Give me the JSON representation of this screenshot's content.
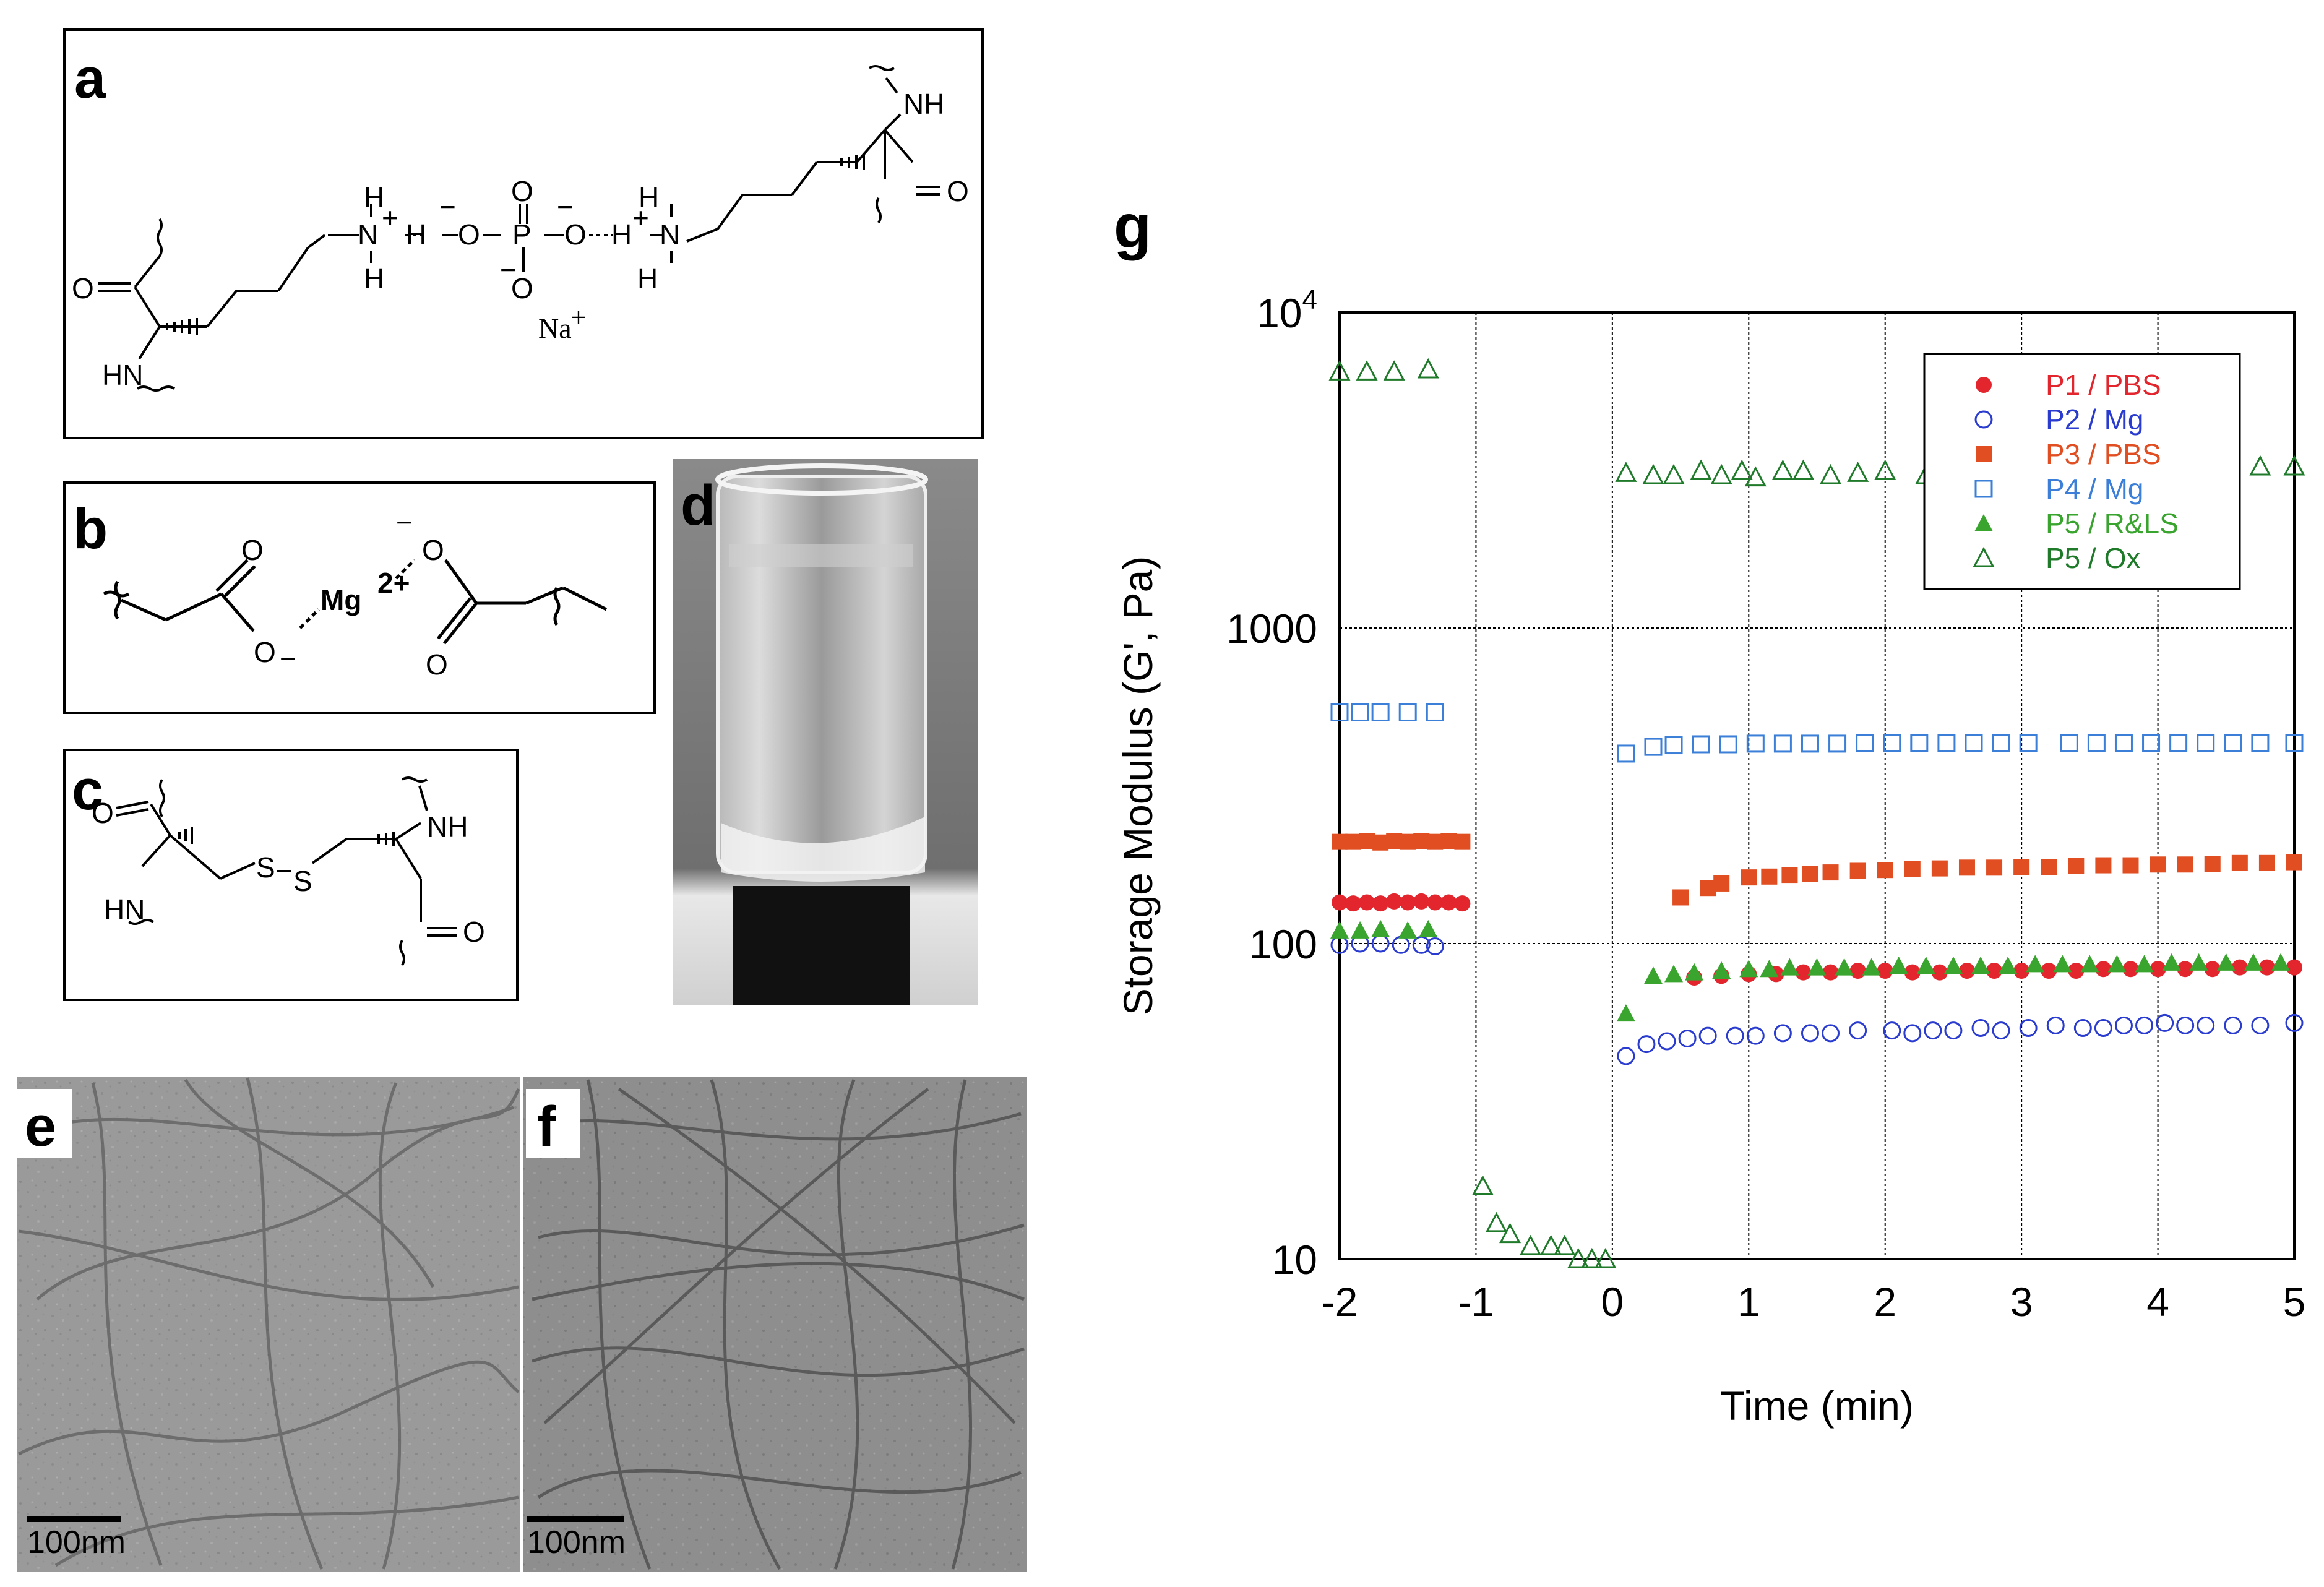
{
  "panel_a": {
    "label": "a",
    "nh_top": "NH",
    "o_right": "O",
    "h_left_top": "H",
    "n_left": "N",
    "plus_left": "+",
    "h_left_mid": "H",
    "h_left_bottom": "H",
    "minus_o1": "−",
    "o1": "O",
    "p": "P",
    "o_top": "O",
    "o2": "O",
    "minus_o2": "−",
    "h_right_top": "H",
    "h_right_mid": "H",
    "plus_right": "+",
    "n_right": "N",
    "h_right_bottom": "H",
    "o_bottom": "O",
    "minus_bottom": "−",
    "na": "Na",
    "na_plus": "+",
    "o_left": "O",
    "hn_bottom": "HN"
  },
  "panel_b": {
    "label": "b",
    "o_top_left": "O",
    "o_bottom_left": "O",
    "minus_left": "−",
    "mg": "Mg",
    "mg_charge": "2+",
    "minus_right": "−",
    "o_top_right": "O",
    "o_bottom_right": "O"
  },
  "panel_c": {
    "label": "c",
    "o_left": "O",
    "hn_left": "HN",
    "s1": "S",
    "s2": "S",
    "nh_right": "NH",
    "o_right": "O"
  },
  "panel_d": {
    "label": "d"
  },
  "panel_e": {
    "label": "e",
    "scale_label": "100nm"
  },
  "panel_f": {
    "label": "f",
    "scale_label": "100nm"
  },
  "panel_g": {
    "label": "g"
  },
  "chart_data": {
    "type": "scatter",
    "title": "",
    "xlabel": "Time (min)",
    "ylabel": "Storage Modulus (G', Pa)",
    "xlim": [
      -2,
      5
    ],
    "ylim": [
      10,
      10000
    ],
    "yscale": "log",
    "grid": true,
    "legend_position": "top-right",
    "x_ticks": [
      "-2",
      "-1",
      "0",
      "1",
      "2",
      "3",
      "4",
      "5"
    ],
    "y_ticks": [
      {
        "value": 10,
        "label": "10"
      },
      {
        "value": 100,
        "label": "100"
      },
      {
        "value": 1000,
        "label": "1000"
      },
      {
        "value": 10000,
        "label": "10",
        "sup": "4"
      }
    ],
    "series": [
      {
        "name": "P1 / PBS",
        "color": "#e3262e",
        "marker": "filled-circle",
        "points": [
          [
            -2,
            135
          ],
          [
            -1.9,
            134
          ],
          [
            -1.8,
            135
          ],
          [
            -1.7,
            134
          ],
          [
            -1.6,
            136
          ],
          [
            -1.5,
            135
          ],
          [
            -1.4,
            136
          ],
          [
            -1.3,
            135
          ],
          [
            -1.2,
            135
          ],
          [
            -1.1,
            134
          ],
          [
            0.6,
            78
          ],
          [
            0.8,
            79
          ],
          [
            1,
            80
          ],
          [
            1.2,
            80
          ],
          [
            1.4,
            81
          ],
          [
            1.6,
            81
          ],
          [
            1.8,
            82
          ],
          [
            2,
            82
          ],
          [
            2.2,
            81
          ],
          [
            2.4,
            81
          ],
          [
            2.6,
            82
          ],
          [
            2.8,
            82
          ],
          [
            3,
            82
          ],
          [
            3.2,
            82
          ],
          [
            3.4,
            82
          ],
          [
            3.6,
            83
          ],
          [
            3.8,
            83
          ],
          [
            4,
            83
          ],
          [
            4.2,
            83
          ],
          [
            4.4,
            83
          ],
          [
            4.6,
            84
          ],
          [
            4.8,
            84
          ],
          [
            5,
            84
          ]
        ]
      },
      {
        "name": "P2 / Mg",
        "color": "#2a3ccf",
        "marker": "open-circle",
        "points": [
          [
            -2,
            99
          ],
          [
            -1.85,
            100
          ],
          [
            -1.7,
            100
          ],
          [
            -1.55,
            99
          ],
          [
            -1.4,
            99
          ],
          [
            -1.3,
            98
          ],
          [
            0.1,
            44
          ],
          [
            0.25,
            48
          ],
          [
            0.4,
            49
          ],
          [
            0.55,
            50
          ],
          [
            0.7,
            51
          ],
          [
            0.9,
            51
          ],
          [
            1.05,
            51
          ],
          [
            1.25,
            52
          ],
          [
            1.45,
            52
          ],
          [
            1.6,
            52
          ],
          [
            1.8,
            53
          ],
          [
            2.05,
            53
          ],
          [
            2.2,
            52
          ],
          [
            2.35,
            53
          ],
          [
            2.5,
            53
          ],
          [
            2.7,
            54
          ],
          [
            2.85,
            53
          ],
          [
            3.05,
            54
          ],
          [
            3.25,
            55
          ],
          [
            3.45,
            54
          ],
          [
            3.6,
            54
          ],
          [
            3.75,
            55
          ],
          [
            3.9,
            55
          ],
          [
            4.05,
            56
          ],
          [
            4.2,
            55
          ],
          [
            4.35,
            55
          ],
          [
            4.55,
            55
          ],
          [
            4.75,
            55
          ],
          [
            5,
            56
          ]
        ]
      },
      {
        "name": "P3 / PBS",
        "color": "#e04e22",
        "marker": "filled-square",
        "points": [
          [
            -2,
            210
          ],
          [
            -1.9,
            210
          ],
          [
            -1.8,
            211
          ],
          [
            -1.7,
            209
          ],
          [
            -1.6,
            211
          ],
          [
            -1.5,
            210
          ],
          [
            -1.4,
            211
          ],
          [
            -1.3,
            210
          ],
          [
            -1.2,
            211
          ],
          [
            -1.1,
            210
          ],
          [
            0.5,
            140
          ],
          [
            0.7,
            150
          ],
          [
            0.8,
            155
          ],
          [
            1,
            162
          ],
          [
            1.15,
            163
          ],
          [
            1.3,
            165
          ],
          [
            1.45,
            166
          ],
          [
            1.6,
            168
          ],
          [
            1.8,
            170
          ],
          [
            2,
            171
          ],
          [
            2.2,
            172
          ],
          [
            2.4,
            173
          ],
          [
            2.6,
            174
          ],
          [
            2.8,
            174
          ],
          [
            3,
            175
          ],
          [
            3.2,
            175
          ],
          [
            3.4,
            176
          ],
          [
            3.6,
            177
          ],
          [
            3.8,
            177
          ],
          [
            4,
            178
          ],
          [
            4.2,
            178
          ],
          [
            4.4,
            179
          ],
          [
            4.6,
            180
          ],
          [
            4.8,
            180
          ],
          [
            5,
            181
          ]
        ]
      },
      {
        "name": "P4 / Mg",
        "color": "#3b7fd8",
        "marker": "open-square",
        "points": [
          [
            -2,
            540
          ],
          [
            -1.85,
            540
          ],
          [
            -1.7,
            540
          ],
          [
            -1.5,
            540
          ],
          [
            -1.3,
            540
          ],
          [
            0.1,
            400
          ],
          [
            0.3,
            420
          ],
          [
            0.45,
            425
          ],
          [
            0.65,
            428
          ],
          [
            0.85,
            428
          ],
          [
            1.05,
            430
          ],
          [
            1.25,
            430
          ],
          [
            1.45,
            430
          ],
          [
            1.65,
            430
          ],
          [
            1.85,
            432
          ],
          [
            2.05,
            432
          ],
          [
            2.25,
            432
          ],
          [
            2.45,
            432
          ],
          [
            2.65,
            432
          ],
          [
            2.85,
            432
          ],
          [
            3.05,
            432
          ],
          [
            3.35,
            432
          ],
          [
            3.55,
            432
          ],
          [
            3.75,
            432
          ],
          [
            3.95,
            432
          ],
          [
            4.15,
            432
          ],
          [
            4.35,
            432
          ],
          [
            4.55,
            432
          ],
          [
            4.75,
            432
          ],
          [
            5,
            432
          ]
        ]
      },
      {
        "name": "P5 / R&LS",
        "color": "#3aa52e",
        "marker": "filled-triangle",
        "points": [
          [
            -2,
            110
          ],
          [
            -1.85,
            110
          ],
          [
            -1.7,
            111
          ],
          [
            -1.5,
            110
          ],
          [
            -1.35,
            111
          ],
          [
            0.1,
            60
          ],
          [
            0.3,
            79
          ],
          [
            0.45,
            80
          ],
          [
            0.6,
            81
          ],
          [
            0.8,
            82
          ],
          [
            1,
            83
          ],
          [
            1.15,
            83
          ],
          [
            1.3,
            84
          ],
          [
            1.5,
            84
          ],
          [
            1.7,
            84
          ],
          [
            1.9,
            84
          ],
          [
            2.1,
            85
          ],
          [
            2.3,
            85
          ],
          [
            2.5,
            85
          ],
          [
            2.7,
            85
          ],
          [
            2.9,
            85
          ],
          [
            3.1,
            86
          ],
          [
            3.3,
            86
          ],
          [
            3.5,
            86
          ],
          [
            3.7,
            86
          ],
          [
            3.9,
            86
          ],
          [
            4.1,
            87
          ],
          [
            4.3,
            87
          ],
          [
            4.5,
            87
          ],
          [
            4.7,
            87
          ],
          [
            4.9,
            87
          ]
        ]
      },
      {
        "name": "P5 / Ox",
        "color": "#1f7a2a",
        "marker": "open-triangle",
        "points": [
          [
            -2,
            6500
          ],
          [
            -1.8,
            6500
          ],
          [
            -1.6,
            6500
          ],
          [
            -1.35,
            6600
          ],
          [
            -0.95,
            17
          ],
          [
            -0.85,
            13
          ],
          [
            -0.75,
            12
          ],
          [
            -0.6,
            11
          ],
          [
            -0.45,
            11
          ],
          [
            -0.35,
            11
          ],
          [
            -0.25,
            10
          ],
          [
            -0.15,
            10
          ],
          [
            -0.05,
            10
          ],
          [
            0.1,
            3100
          ],
          [
            0.3,
            3050
          ],
          [
            0.45,
            3050
          ],
          [
            0.65,
            3150
          ],
          [
            0.8,
            3050
          ],
          [
            0.95,
            3150
          ],
          [
            1.05,
            3000
          ],
          [
            1.25,
            3150
          ],
          [
            1.4,
            3150
          ],
          [
            1.6,
            3050
          ],
          [
            1.8,
            3100
          ],
          [
            2.0,
            3150
          ],
          [
            2.3,
            3050
          ],
          [
            2.5,
            3100
          ],
          [
            2.7,
            3150
          ],
          [
            2.9,
            3050
          ],
          [
            3.1,
            3050
          ],
          [
            3.3,
            3150
          ],
          [
            3.5,
            3150
          ],
          [
            3.7,
            3100
          ],
          [
            3.9,
            3150
          ],
          [
            4.1,
            3150
          ],
          [
            4.3,
            3150
          ],
          [
            4.5,
            3200
          ],
          [
            4.75,
            3250
          ],
          [
            5,
            3250
          ]
        ]
      }
    ]
  }
}
